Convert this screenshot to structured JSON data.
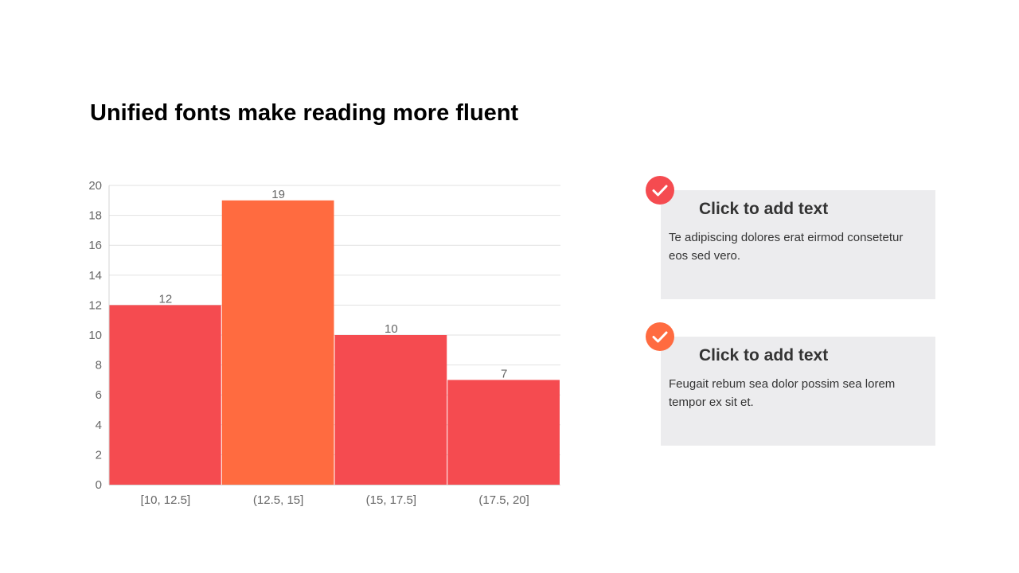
{
  "slide": {
    "title": "Unified fonts make reading more fluent"
  },
  "cards": [
    {
      "title": "Click to add text",
      "body": "Te adipiscing dolores erat eirmod consetetur eos sed vero.",
      "accent": "#f54b50",
      "icon": "check-icon"
    },
    {
      "title": "Click to add text",
      "body": "Feugait rebum sea dolor possim sea lorem tempor ex sit et.",
      "accent": "#ff6b40",
      "icon": "check-icon"
    }
  ],
  "chart_data": {
    "type": "bar",
    "categories": [
      "[10, 12.5]",
      "(12.5, 15]",
      "(15, 17.5]",
      "(17.5, 20]"
    ],
    "values": [
      12,
      19,
      10,
      7
    ],
    "data_labels": [
      "12",
      "19",
      "10",
      "7"
    ],
    "bar_colors": [
      "#f54b50",
      "#ff6b40",
      "#f54b50",
      "#f54b50"
    ],
    "ylim": [
      0,
      20
    ],
    "yticks": [
      0,
      2,
      4,
      6,
      8,
      10,
      12,
      14,
      16,
      18,
      20
    ],
    "ytick_labels": [
      "0",
      "2",
      "4",
      "6",
      "8",
      "10",
      "12",
      "14",
      "16",
      "18",
      "20"
    ],
    "grid": true,
    "title": "",
    "xlabel": "",
    "ylabel": ""
  }
}
